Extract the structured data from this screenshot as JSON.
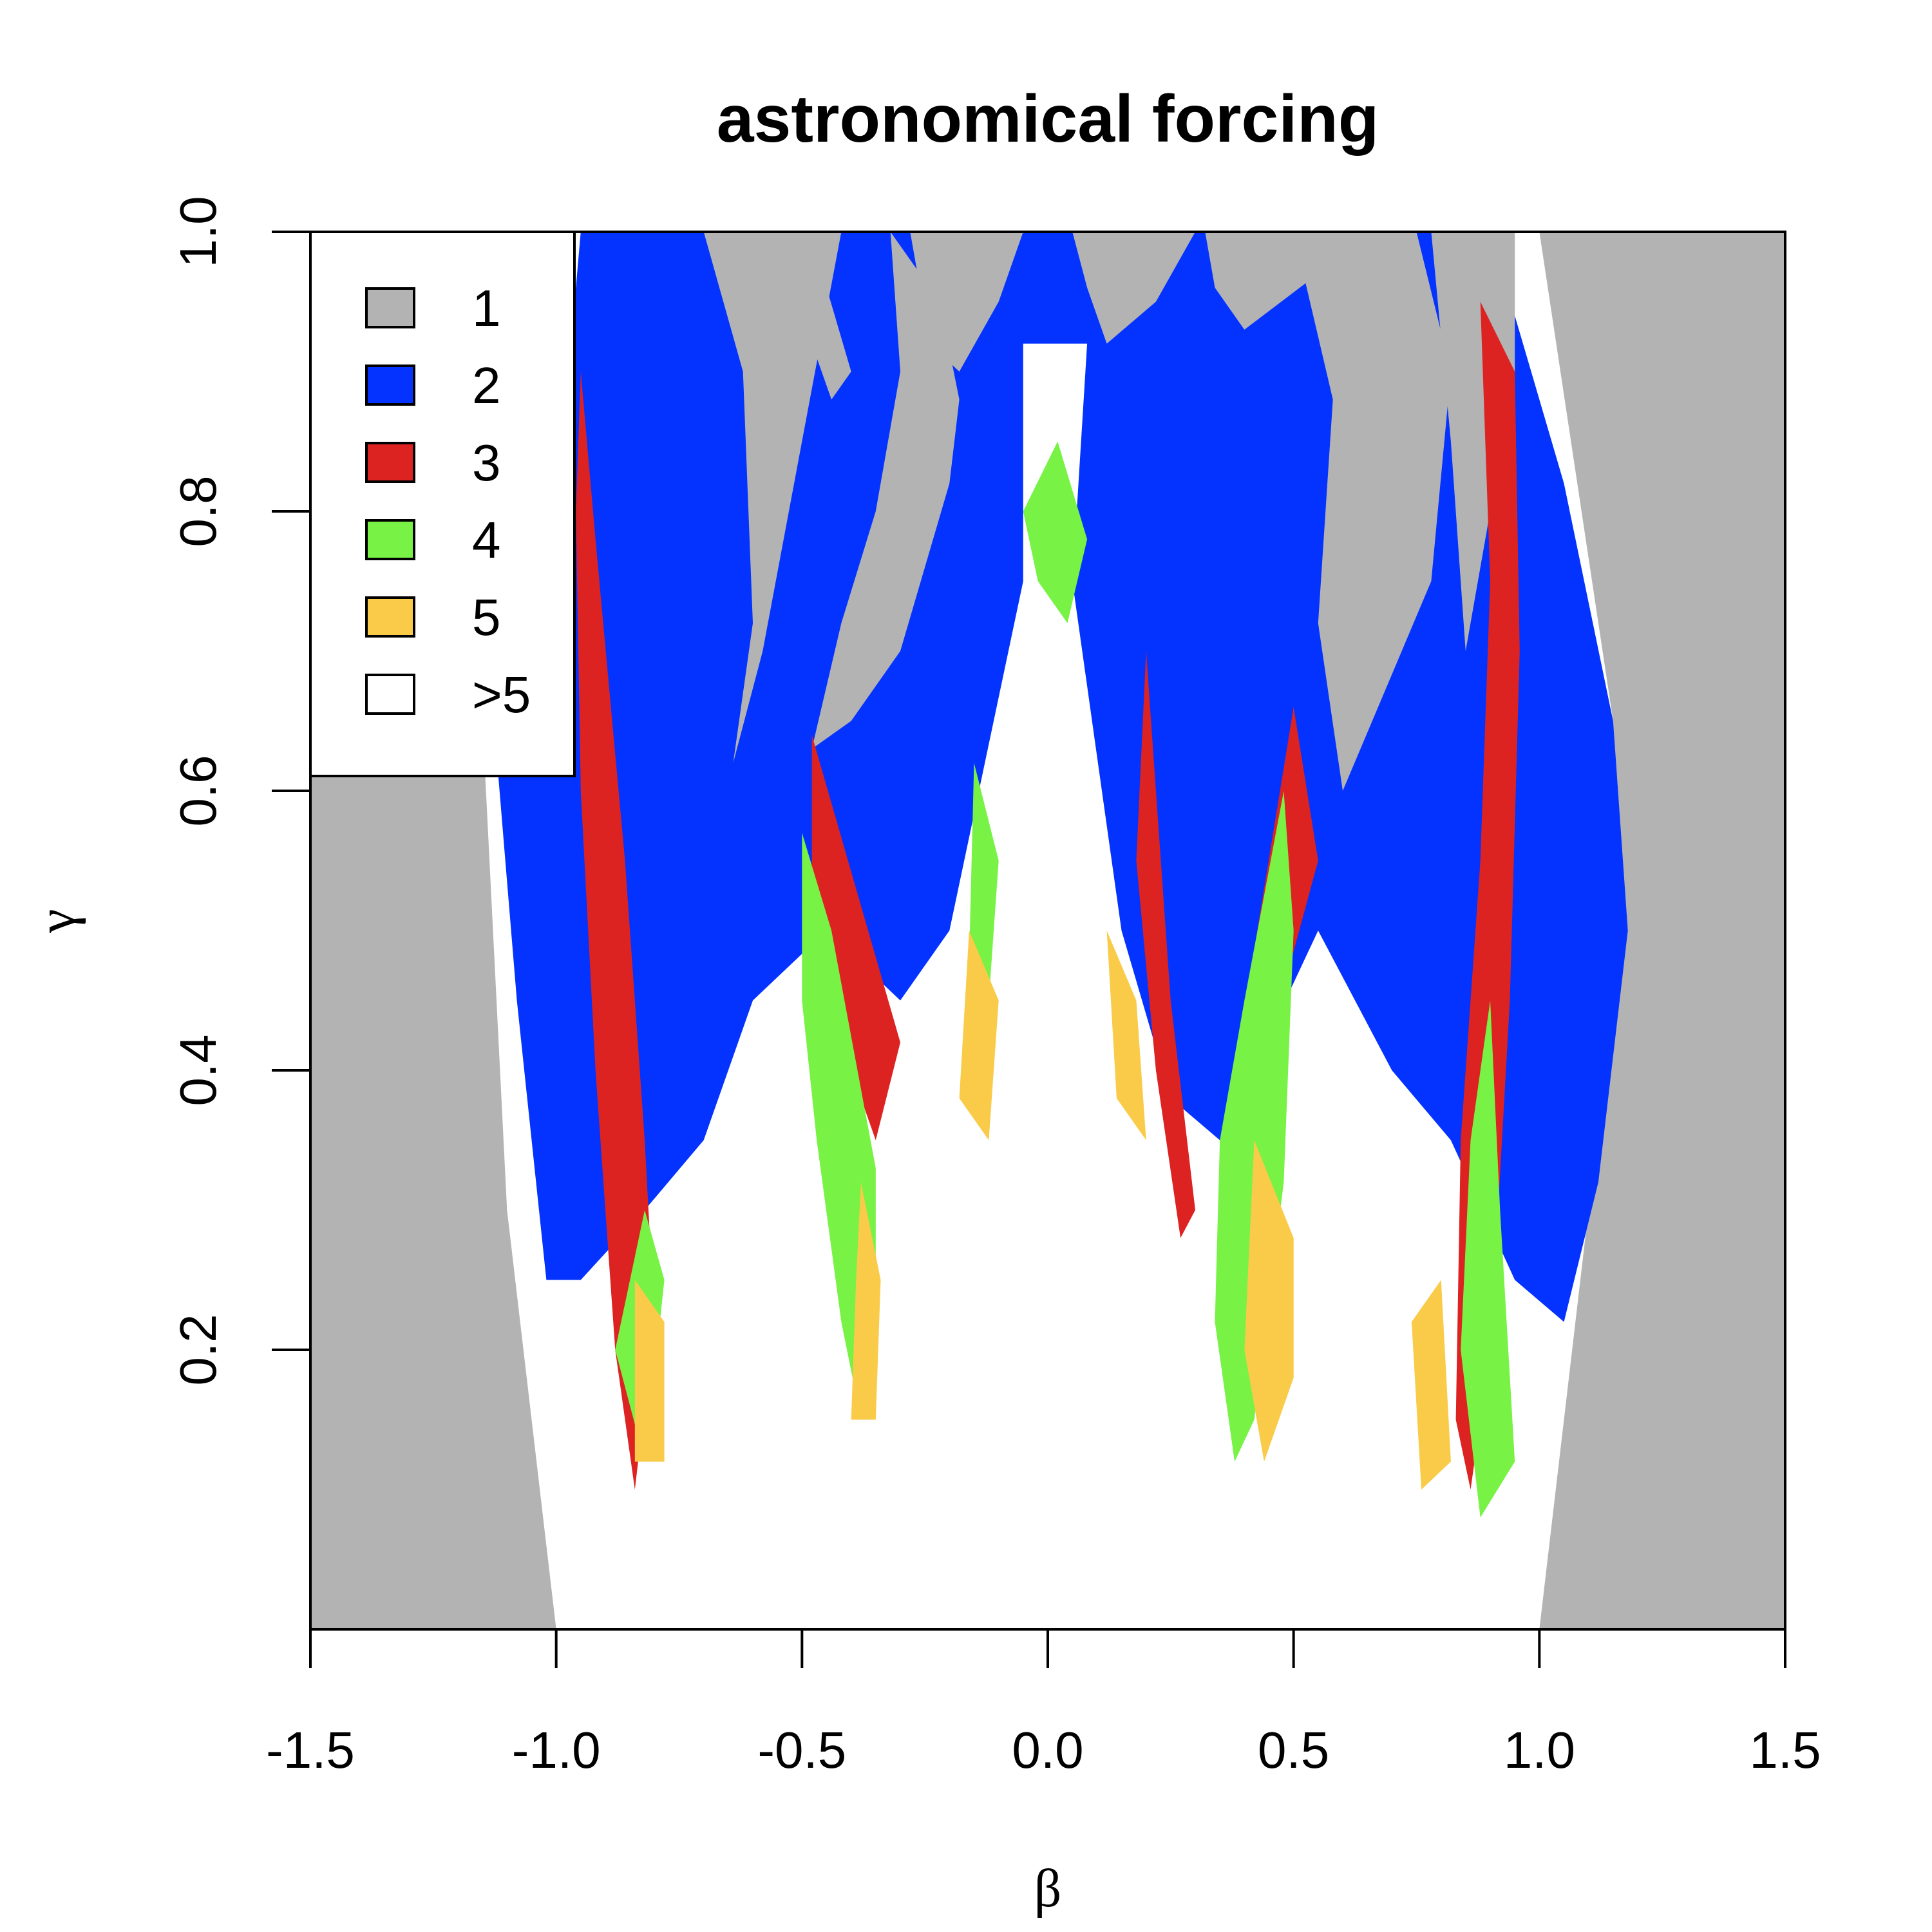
{
  "chart_data": {
    "type": "heatmap",
    "title": "astronomical forcing",
    "xlabel": "β",
    "ylabel": "γ",
    "xlim": [
      -1.5,
      1.5
    ],
    "ylim": [
      0.0,
      1.0
    ],
    "x_ticks": [
      "-1.5",
      "-1.0",
      "-0.5",
      "0.0",
      "0.5",
      "1.0",
      "1.5"
    ],
    "y_ticks": [
      "0.2",
      "0.4",
      "0.6",
      "0.8",
      "1.0"
    ],
    "legend": {
      "position": "top-left",
      "entries": [
        {
          "label": "1",
          "color": "#b3b3b3"
        },
        {
          "label": "2",
          "color": "#0433ff"
        },
        {
          "label": "3",
          "color": "#dd2222"
        },
        {
          "label": "4",
          "color": "#77f245"
        },
        {
          "label": "5",
          "color": "#f9cb48"
        },
        {
          "label": ">5",
          "color": "#ffffff"
        }
      ]
    },
    "region_colors": {
      "1": "#b3b3b3",
      "2": "#0433ff",
      "3": "#dd2222",
      "4": "#77f245",
      "5": "#f9cb48",
      ">5": "#ffffff"
    },
    "regions": [
      {
        "value": "2",
        "points": [
          [
            -1.02,
            0.25
          ],
          [
            -1.08,
            0.45
          ],
          [
            -1.12,
            0.62
          ],
          [
            -1.0,
            0.8
          ],
          [
            -0.95,
            1.0
          ],
          [
            0.1,
            1.0
          ],
          [
            0.1,
            0.92
          ],
          [
            -0.05,
            0.92
          ],
          [
            -0.05,
            0.75
          ],
          [
            -0.2,
            0.5
          ],
          [
            -0.3,
            0.45
          ],
          [
            -0.45,
            0.5
          ],
          [
            -0.6,
            0.45
          ],
          [
            -0.7,
            0.35
          ],
          [
            -0.82,
            0.3
          ],
          [
            -0.95,
            0.25
          ]
        ]
      },
      {
        "value": "2",
        "points": [
          [
            0.05,
            1.0
          ],
          [
            0.9,
            1.0
          ],
          [
            1.05,
            0.82
          ],
          [
            1.15,
            0.65
          ],
          [
            1.18,
            0.5
          ],
          [
            1.12,
            0.32
          ],
          [
            1.05,
            0.22
          ],
          [
            0.95,
            0.25
          ],
          [
            0.82,
            0.35
          ],
          [
            0.7,
            0.4
          ],
          [
            0.55,
            0.5
          ],
          [
            0.35,
            0.35
          ],
          [
            0.25,
            0.38
          ],
          [
            0.15,
            0.5
          ],
          [
            0.05,
            0.75
          ],
          [
            0.08,
            0.92
          ]
        ]
      },
      {
        "value": "1",
        "points": [
          [
            -0.7,
            1.0
          ],
          [
            -0.42,
            1.0
          ],
          [
            -0.5,
            0.85
          ],
          [
            -0.58,
            0.7
          ],
          [
            -0.64,
            0.62
          ],
          [
            -0.6,
            0.72
          ],
          [
            -0.62,
            0.9
          ]
        ]
      },
      {
        "value": "1",
        "points": [
          [
            -0.32,
            1.0
          ],
          [
            -0.22,
            0.95
          ],
          [
            -0.18,
            0.88
          ],
          [
            -0.2,
            0.82
          ],
          [
            -0.3,
            0.7
          ],
          [
            -0.4,
            0.65
          ],
          [
            -0.48,
            0.63
          ],
          [
            -0.42,
            0.72
          ],
          [
            -0.35,
            0.8
          ],
          [
            -0.3,
            0.9
          ]
        ]
      },
      {
        "value": "1",
        "points": [
          [
            -0.5,
            0.98
          ],
          [
            -0.45,
            0.96
          ],
          [
            -0.4,
            0.9
          ],
          [
            -0.44,
            0.88
          ],
          [
            -0.48,
            0.92
          ]
        ]
      },
      {
        "value": "1",
        "points": [
          [
            -0.28,
            1.0
          ],
          [
            -0.05,
            1.0
          ],
          [
            -0.1,
            0.95
          ],
          [
            -0.18,
            0.9
          ],
          [
            -0.24,
            0.92
          ]
        ]
      },
      {
        "value": "1",
        "points": [
          [
            0.05,
            1.0
          ],
          [
            0.3,
            1.0
          ],
          [
            0.22,
            0.95
          ],
          [
            0.12,
            0.92
          ],
          [
            0.08,
            0.96
          ]
        ]
      },
      {
        "value": "1",
        "points": [
          [
            0.32,
            1.0
          ],
          [
            0.6,
            1.0
          ],
          [
            0.55,
            0.97
          ],
          [
            0.4,
            0.93
          ],
          [
            0.34,
            0.96
          ]
        ]
      },
      {
        "value": "1",
        "points": [
          [
            0.5,
            1.0
          ],
          [
            0.75,
            1.0
          ],
          [
            0.82,
            0.9
          ],
          [
            0.78,
            0.75
          ],
          [
            0.6,
            0.6
          ],
          [
            0.55,
            0.72
          ],
          [
            0.58,
            0.88
          ]
        ]
      },
      {
        "value": "1",
        "points": [
          [
            0.78,
            1.0
          ],
          [
            0.95,
            1.0
          ],
          [
            0.95,
            0.9
          ],
          [
            0.9,
            0.8
          ],
          [
            0.85,
            0.7
          ],
          [
            0.82,
            0.85
          ]
        ]
      },
      {
        "value": "3",
        "points": [
          [
            -0.95,
            0.9
          ],
          [
            -0.92,
            0.78
          ],
          [
            -0.86,
            0.55
          ],
          [
            -0.82,
            0.35
          ],
          [
            -0.8,
            0.22
          ],
          [
            -0.84,
            0.1
          ],
          [
            -0.88,
            0.2
          ],
          [
            -0.92,
            0.4
          ],
          [
            -0.95,
            0.6
          ],
          [
            -0.96,
            0.8
          ]
        ]
      },
      {
        "value": "3",
        "points": [
          [
            0.88,
            0.95
          ],
          [
            0.9,
            0.75
          ],
          [
            0.88,
            0.55
          ],
          [
            0.84,
            0.35
          ],
          [
            0.83,
            0.15
          ],
          [
            0.86,
            0.1
          ],
          [
            0.9,
            0.2
          ],
          [
            0.94,
            0.45
          ],
          [
            0.96,
            0.7
          ],
          [
            0.95,
            0.9
          ]
        ]
      },
      {
        "value": "3",
        "points": [
          [
            -0.48,
            0.64
          ],
          [
            -0.3,
            0.42
          ],
          [
            -0.35,
            0.35
          ],
          [
            -0.48,
            0.48
          ]
        ]
      },
      {
        "value": "3",
        "points": [
          [
            0.2,
            0.7
          ],
          [
            0.25,
            0.45
          ],
          [
            0.3,
            0.3
          ],
          [
            0.27,
            0.28
          ],
          [
            0.22,
            0.4
          ],
          [
            0.18,
            0.55
          ]
        ]
      },
      {
        "value": "3",
        "points": [
          [
            0.5,
            0.66
          ],
          [
            0.55,
            0.55
          ],
          [
            0.45,
            0.42
          ],
          [
            0.35,
            0.32
          ],
          [
            0.38,
            0.4
          ]
        ]
      },
      {
        "value": "4",
        "points": [
          [
            -0.5,
            0.57
          ],
          [
            -0.44,
            0.5
          ],
          [
            -0.35,
            0.33
          ],
          [
            -0.35,
            0.2
          ],
          [
            -0.38,
            0.15
          ],
          [
            -0.42,
            0.22
          ],
          [
            -0.47,
            0.35
          ],
          [
            -0.5,
            0.45
          ]
        ]
      },
      {
        "value": "4",
        "points": [
          [
            0.48,
            0.6
          ],
          [
            0.5,
            0.5
          ],
          [
            0.48,
            0.32
          ],
          [
            0.42,
            0.15
          ],
          [
            0.38,
            0.12
          ],
          [
            0.34,
            0.22
          ],
          [
            0.35,
            0.35
          ],
          [
            0.4,
            0.45
          ]
        ]
      },
      {
        "value": "4",
        "points": [
          [
            -0.15,
            0.62
          ],
          [
            -0.1,
            0.55
          ],
          [
            -0.12,
            0.45
          ],
          [
            -0.16,
            0.48
          ]
        ]
      },
      {
        "value": "4",
        "points": [
          [
            0.02,
            0.85
          ],
          [
            0.08,
            0.78
          ],
          [
            0.04,
            0.72
          ],
          [
            -0.02,
            0.75
          ],
          [
            -0.05,
            0.8
          ]
        ]
      },
      {
        "value": "4",
        "points": [
          [
            0.9,
            0.45
          ],
          [
            0.92,
            0.3
          ],
          [
            0.95,
            0.12
          ],
          [
            0.88,
            0.08
          ],
          [
            0.84,
            0.2
          ],
          [
            0.86,
            0.35
          ]
        ]
      },
      {
        "value": "4",
        "points": [
          [
            -0.88,
            0.2
          ],
          [
            -0.82,
            0.12
          ],
          [
            -0.78,
            0.25
          ],
          [
            -0.82,
            0.3
          ]
        ]
      },
      {
        "value": "5",
        "points": [
          [
            -0.38,
            0.32
          ],
          [
            -0.34,
            0.25
          ],
          [
            -0.35,
            0.15
          ],
          [
            -0.4,
            0.15
          ],
          [
            -0.39,
            0.25
          ]
        ]
      },
      {
        "value": "5",
        "points": [
          [
            0.42,
            0.35
          ],
          [
            0.5,
            0.28
          ],
          [
            0.5,
            0.18
          ],
          [
            0.44,
            0.12
          ],
          [
            0.4,
            0.2
          ]
        ]
      },
      {
        "value": "5",
        "points": [
          [
            -0.84,
            0.25
          ],
          [
            -0.78,
            0.22
          ],
          [
            -0.78,
            0.12
          ],
          [
            -0.84,
            0.12
          ]
        ]
      },
      {
        "value": "5",
        "points": [
          [
            0.74,
            0.22
          ],
          [
            0.8,
            0.25
          ],
          [
            0.82,
            0.12
          ],
          [
            0.76,
            0.1
          ]
        ]
      },
      {
        "value": "5",
        "points": [
          [
            -0.16,
            0.5
          ],
          [
            -0.1,
            0.45
          ],
          [
            -0.12,
            0.35
          ],
          [
            -0.18,
            0.38
          ]
        ]
      },
      {
        "value": "5",
        "points": [
          [
            0.12,
            0.5
          ],
          [
            0.18,
            0.45
          ],
          [
            0.2,
            0.35
          ],
          [
            0.14,
            0.38
          ]
        ]
      }
    ]
  }
}
